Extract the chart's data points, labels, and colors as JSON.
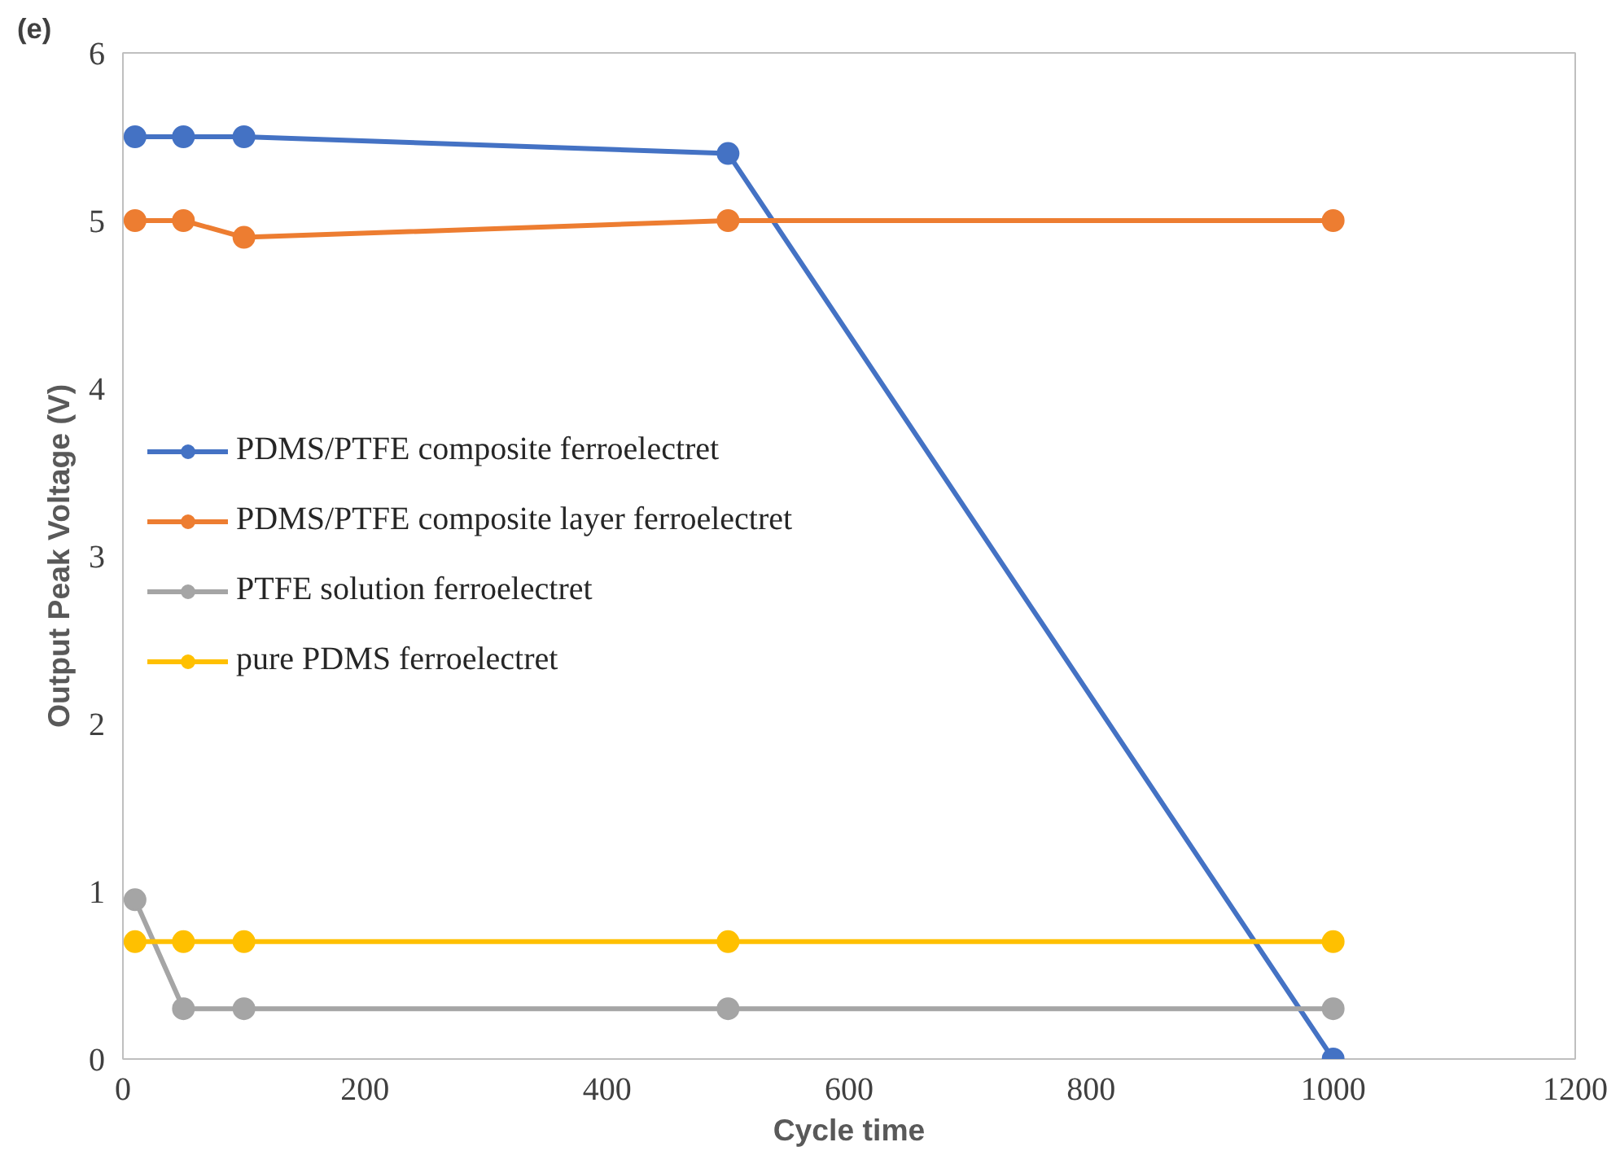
{
  "chart_data": {
    "type": "line",
    "annotations": [
      "(e)"
    ],
    "xlabel": "Cycle time",
    "ylabel": "Output Peak Voltage (V)",
    "x": [
      10,
      50,
      100,
      500,
      1000
    ],
    "series": [
      {
        "name": "PDMS/PTFE composite ferroelectret",
        "color": "#4472c4",
        "values": [
          5.5,
          5.5,
          5.5,
          5.4,
          0
        ]
      },
      {
        "name": "PDMS/PTFE composite layer ferroelectret",
        "color": "#ed7d31",
        "values": [
          5,
          5,
          4.9,
          5,
          5
        ]
      },
      {
        "name": "PTFE solution ferroelectret",
        "color": "#a5a5a5",
        "values": [
          0.95,
          0.3,
          0.3,
          0.3,
          0.3
        ]
      },
      {
        "name": "pure PDMS ferroelectret",
        "color": "#ffc000",
        "values": [
          0.7,
          0.7,
          0.7,
          0.7,
          0.7
        ]
      }
    ],
    "xlim": [
      0,
      1200
    ],
    "xticks": [
      0,
      200,
      400,
      600,
      800,
      1000,
      1200
    ],
    "ylim": [
      0,
      6
    ],
    "yticks": [
      0,
      1,
      2,
      3,
      4,
      5,
      6
    ],
    "grid": false,
    "legend": "left",
    "marker": "circle",
    "line_style": "solid"
  }
}
